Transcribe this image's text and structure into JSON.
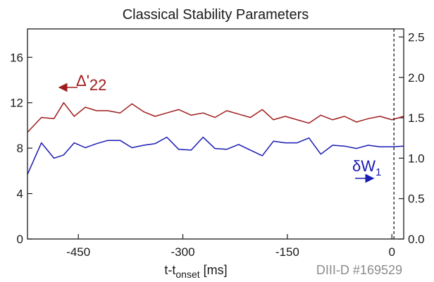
{
  "chart_data": {
    "type": "line",
    "title": "Classical Stability Parameters",
    "xlabel": {
      "main": "t-t",
      "sub": "onset",
      "units": " [ms]"
    },
    "xlim": [
      -523,
      17
    ],
    "x_ticks": [
      -450,
      -300,
      -150,
      0
    ],
    "x_tick_labels": [
      "-450",
      "-300",
      "-150",
      "0"
    ],
    "y_left": {
      "lim": [
        0,
        18.5
      ],
      "ticks": [
        0,
        4,
        8,
        12,
        16
      ],
      "tick_labels": [
        "0",
        "4",
        "8",
        "12",
        "16"
      ]
    },
    "y_right": {
      "lim": [
        0,
        2.6
      ],
      "ticks": [
        0,
        0.5,
        1.0,
        1.5,
        2.0,
        2.5
      ],
      "tick_labels": [
        "0.0",
        "0.5",
        "1.0",
        "1.5",
        "2.0",
        "2.5"
      ]
    },
    "annotation": "DIII-D #169529",
    "onset_marker_x": 3,
    "series": [
      {
        "name": "Δ'22",
        "label_main": "Δ'",
        "label_sub": "22",
        "axis": "left",
        "color": "#a01c1c",
        "x": [
          -523,
          -503,
          -485,
          -471,
          -456,
          -440,
          -424,
          -408,
          -390,
          -373,
          -356,
          -340,
          -323,
          -306,
          -288,
          -271,
          -254,
          -237,
          -220,
          -203,
          -186,
          -170,
          -153,
          -136,
          -119,
          -102,
          -85,
          -68,
          -51,
          -34,
          -17,
          0,
          17
        ],
        "y": [
          9.4,
          10.7,
          10.6,
          12.0,
          10.8,
          11.6,
          11.3,
          11.3,
          11.1,
          11.9,
          11.2,
          10.8,
          11.1,
          11.4,
          10.9,
          11.1,
          10.7,
          11.3,
          11.0,
          10.7,
          11.4,
          10.5,
          10.8,
          10.5,
          10.2,
          10.9,
          10.5,
          10.8,
          10.3,
          10.6,
          10.8,
          10.5,
          10.8
        ]
      },
      {
        "name": "δW1",
        "label_main": "δW",
        "label_sub": "1",
        "axis": "right",
        "color": "#1a1ab4",
        "x": [
          -523,
          -503,
          -485,
          -471,
          -456,
          -440,
          -424,
          -408,
          -390,
          -373,
          -356,
          -340,
          -323,
          -306,
          -288,
          -271,
          -254,
          -237,
          -220,
          -203,
          -186,
          -170,
          -153,
          -136,
          -119,
          -102,
          -85,
          -68,
          -51,
          -34,
          -17,
          0,
          17
        ],
        "y": [
          0.8,
          1.19,
          1.0,
          1.04,
          1.19,
          1.13,
          1.18,
          1.22,
          1.22,
          1.13,
          1.16,
          1.18,
          1.26,
          1.11,
          1.1,
          1.26,
          1.12,
          1.11,
          1.17,
          1.1,
          1.03,
          1.21,
          1.19,
          1.19,
          1.25,
          1.05,
          1.16,
          1.15,
          1.12,
          1.16,
          1.14,
          1.14,
          1.15
        ]
      }
    ]
  }
}
